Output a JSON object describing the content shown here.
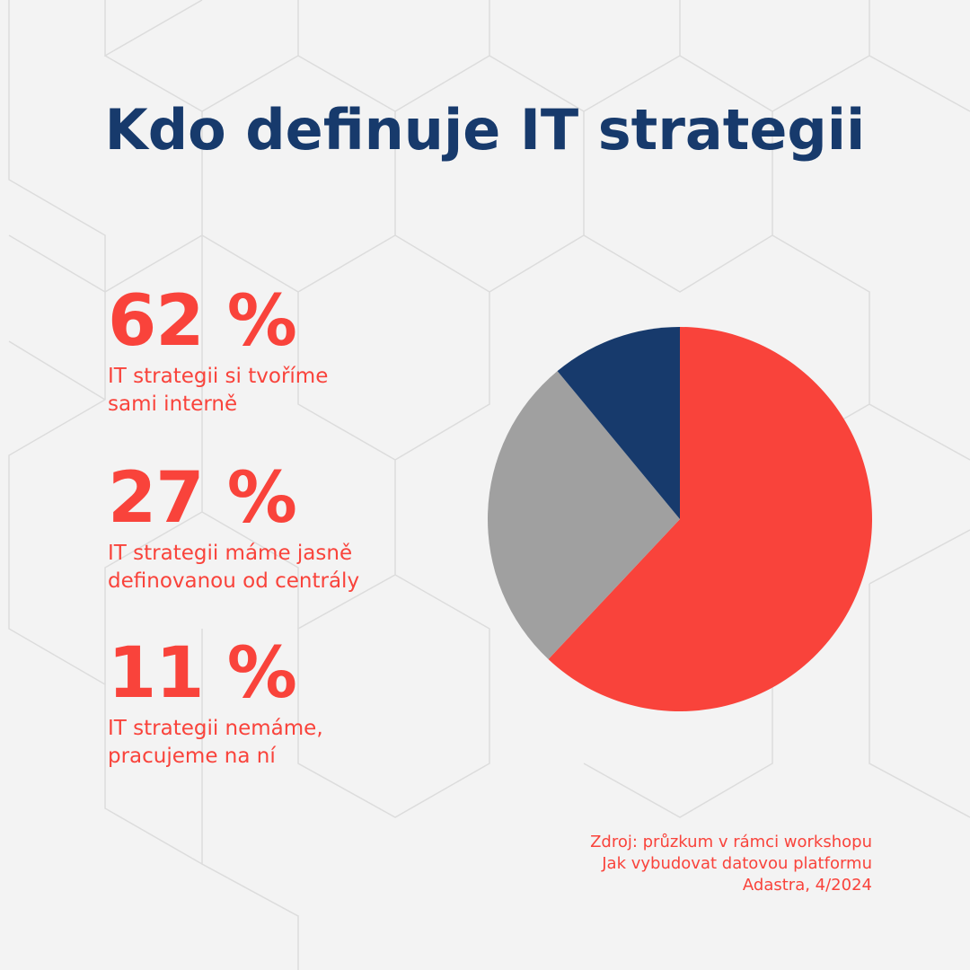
{
  "title": "Kdo definuje IT strategii",
  "stats": [
    {
      "percent": "62 %",
      "label_line1": "IT strategii si tvoříme",
      "label_line2": "sami interně"
    },
    {
      "percent": "27 %",
      "label_line1": "IT strategii máme jasně",
      "label_line2": "definovanou od centrály"
    },
    {
      "percent": "11 %",
      "label_line1": "IT strategii nemáme,",
      "label_line2": "pracujeme na ní"
    }
  ],
  "source": {
    "line1": "Zdroj: průzkum v rámci workshopu",
    "line2": "Jak vybudovat datovou platformu",
    "line3": "Adastra, 4/2024"
  },
  "chart_data": {
    "type": "pie",
    "title": "Kdo definuje IT strategii",
    "categories": [
      "IT strategii si tvoříme sami interně",
      "IT strategii máme jasně definovanou od centrály",
      "IT strategii nemáme, pracujeme na ní"
    ],
    "values": [
      62,
      27,
      11
    ],
    "colors": [
      "#f9433b",
      "#a0a0a0",
      "#173a6c"
    ],
    "start": "top",
    "direction": "clockwise"
  }
}
